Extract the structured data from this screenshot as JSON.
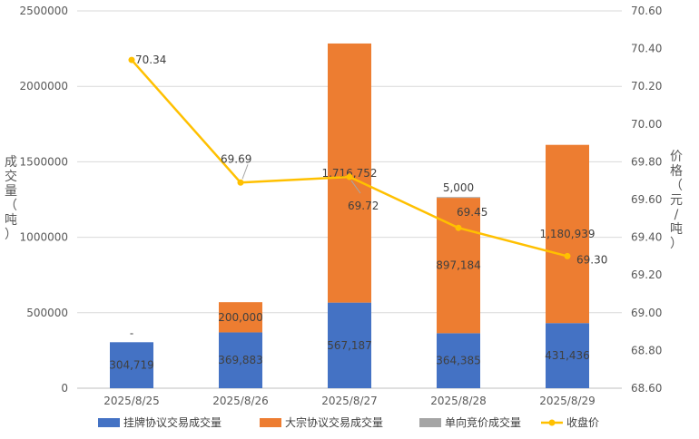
{
  "chart_data": {
    "type": "bar",
    "stacked": true,
    "categories": [
      "2025/8/25",
      "2025/8/26",
      "2025/8/27",
      "2025/8/28",
      "2025/8/29"
    ],
    "series": [
      {
        "name": "挂牌协议交易成交量",
        "values": [
          304719,
          369883,
          567187,
          364385,
          431436
        ],
        "labels": [
          "304,719",
          "369,883",
          "567,187",
          "364,385",
          "431,436"
        ],
        "color": "#4472C4"
      },
      {
        "name": "大宗协议交易成交量",
        "values": [
          0,
          200000,
          1716752,
          897184,
          1180939
        ],
        "labels": [
          "",
          "200,000",
          "1,716,752",
          "897,184",
          "1,180,939"
        ],
        "color": "#ED7D31"
      },
      {
        "name": "单向竞价成交量",
        "values": [
          0,
          0,
          0,
          5000,
          0
        ],
        "labels": [
          "-",
          "",
          "",
          "5,000",
          ""
        ],
        "color": "#A5A5A5"
      }
    ],
    "line": {
      "name": "收盘价",
      "values": [
        70.34,
        69.69,
        69.72,
        69.45,
        69.3
      ],
      "labels": [
        "70.34",
        "69.69",
        "69.72",
        "69.45",
        "69.30"
      ],
      "color": "#FFC000"
    },
    "ylabel_left": "成交量（吨）",
    "ylabel_right": "价格（元/吨）",
    "ylim_left": [
      0,
      2500000
    ],
    "ylim_right": [
      68.6,
      70.6
    ],
    "yticks_left": [
      "0",
      "500000",
      "1000000",
      "1500000",
      "2000000",
      "2500000"
    ],
    "yticks_right": [
      "68.60",
      "68.80",
      "69.00",
      "69.20",
      "69.40",
      "69.60",
      "69.80",
      "70.00",
      "70.20",
      "70.40",
      "70.60"
    ],
    "grid": true,
    "legend_position": "bottom"
  }
}
